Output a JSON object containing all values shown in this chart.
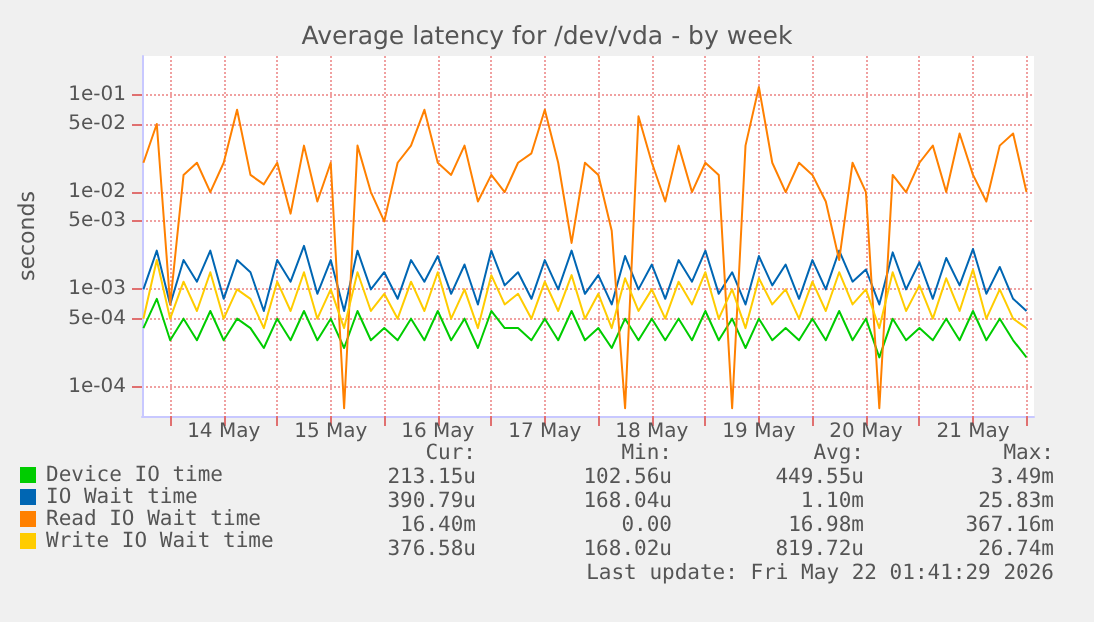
{
  "chart_data": {
    "type": "line",
    "title": "Average latency for /dev/vda - by week",
    "ylabel": "seconds",
    "log": "y",
    "grid": true,
    "legend": "bottom",
    "marker": "none",
    "line_style": "solid",
    "x": [
      "2026-05-13T18:00",
      "2026-05-13T21:00",
      "2026-05-14T00:00",
      "2026-05-14T03:00",
      "2026-05-14T06:00",
      "2026-05-14T09:00",
      "2026-05-14T12:00",
      "2026-05-14T15:00",
      "2026-05-14T18:00",
      "2026-05-14T21:00",
      "2026-05-15T00:00",
      "2026-05-15T03:00",
      "2026-05-15T06:00",
      "2026-05-15T09:00",
      "2026-05-15T12:00",
      "2026-05-15T15:00",
      "2026-05-15T18:00",
      "2026-05-15T21:00",
      "2026-05-16T00:00",
      "2026-05-16T03:00",
      "2026-05-16T06:00",
      "2026-05-16T09:00",
      "2026-05-16T12:00",
      "2026-05-16T15:00",
      "2026-05-16T18:00",
      "2026-05-16T21:00",
      "2026-05-17T00:00",
      "2026-05-17T03:00",
      "2026-05-17T06:00",
      "2026-05-17T09:00",
      "2026-05-17T12:00",
      "2026-05-17T15:00",
      "2026-05-17T18:00",
      "2026-05-17T21:00",
      "2026-05-18T00:00",
      "2026-05-18T03:00",
      "2026-05-18T06:00",
      "2026-05-18T09:00",
      "2026-05-18T12:00",
      "2026-05-18T15:00",
      "2026-05-18T18:00",
      "2026-05-18T21:00",
      "2026-05-19T00:00",
      "2026-05-19T03:00",
      "2026-05-19T06:00",
      "2026-05-19T09:00",
      "2026-05-19T12:00",
      "2026-05-19T15:00",
      "2026-05-19T18:00",
      "2026-05-19T21:00",
      "2026-05-20T00:00",
      "2026-05-20T03:00",
      "2026-05-20T06:00",
      "2026-05-20T09:00",
      "2026-05-20T12:00",
      "2026-05-20T15:00",
      "2026-05-20T18:00",
      "2026-05-20T21:00",
      "2026-05-21T00:00",
      "2026-05-21T03:00",
      "2026-05-21T06:00",
      "2026-05-21T09:00",
      "2026-05-21T12:00",
      "2026-05-21T15:00",
      "2026-05-21T18:00",
      "2026-05-21T21:00",
      "2026-05-22T00:00"
    ],
    "xlim": [
      "2026-05-13T17:41",
      "2026-05-22T01:41"
    ],
    "xticks": [
      {
        "value": "2026-05-14T00:00",
        "label": null
      },
      {
        "value": "2026-05-14T12:00",
        "label": "14 May"
      },
      {
        "value": "2026-05-15T00:00",
        "label": null
      },
      {
        "value": "2026-05-15T12:00",
        "label": "15 May"
      },
      {
        "value": "2026-05-16T00:00",
        "label": null
      },
      {
        "value": "2026-05-16T12:00",
        "label": "16 May"
      },
      {
        "value": "2026-05-17T00:00",
        "label": null
      },
      {
        "value": "2026-05-17T12:00",
        "label": "17 May"
      },
      {
        "value": "2026-05-18T00:00",
        "label": null
      },
      {
        "value": "2026-05-18T12:00",
        "label": "18 May"
      },
      {
        "value": "2026-05-19T00:00",
        "label": null
      },
      {
        "value": "2026-05-19T12:00",
        "label": "19 May"
      },
      {
        "value": "2026-05-20T00:00",
        "label": null
      },
      {
        "value": "2026-05-20T12:00",
        "label": "20 May"
      },
      {
        "value": "2026-05-21T00:00",
        "label": null
      },
      {
        "value": "2026-05-21T12:00",
        "label": "21 May"
      },
      {
        "value": "2026-05-22T00:00",
        "label": null
      }
    ],
    "ylim": [
      5e-05,
      0.25
    ],
    "yticks": [
      {
        "value": 0.0001,
        "label": "1e-04"
      },
      {
        "value": 0.0005,
        "label": "5e-04"
      },
      {
        "value": 0.001,
        "label": "1e-03"
      },
      {
        "value": 0.005,
        "label": "5e-03"
      },
      {
        "value": 0.01,
        "label": "1e-02"
      },
      {
        "value": 0.05,
        "label": "5e-02"
      },
      {
        "value": 0.1,
        "label": "1e-01"
      }
    ],
    "series": [
      {
        "name": "Device IO time",
        "color": "#00cc00",
        "values": [
          0.0004,
          0.0008,
          0.0003,
          0.0005,
          0.0003,
          0.0006,
          0.0003,
          0.0005,
          0.0004,
          0.00025,
          0.0005,
          0.0003,
          0.0006,
          0.0003,
          0.0005,
          0.00025,
          0.0006,
          0.0003,
          0.0004,
          0.0003,
          0.0005,
          0.0003,
          0.0006,
          0.0003,
          0.0005,
          0.00025,
          0.0006,
          0.0004,
          0.0004,
          0.0003,
          0.0005,
          0.0003,
          0.0006,
          0.0003,
          0.0004,
          0.00025,
          0.0005,
          0.0003,
          0.0005,
          0.0003,
          0.0005,
          0.0003,
          0.0006,
          0.0003,
          0.0005,
          0.00025,
          0.0005,
          0.0003,
          0.0004,
          0.0003,
          0.0005,
          0.0003,
          0.0006,
          0.0003,
          0.0005,
          0.0002,
          0.0005,
          0.0003,
          0.0004,
          0.0003,
          0.0005,
          0.0003,
          0.0006,
          0.0003,
          0.0005,
          0.0003,
          0.0002
        ]
      },
      {
        "name": "IO Wait time",
        "color": "#0066b3",
        "values": [
          0.001,
          0.0025,
          0.0007,
          0.002,
          0.0012,
          0.0025,
          0.0008,
          0.002,
          0.0015,
          0.0006,
          0.002,
          0.0012,
          0.0028,
          0.0009,
          0.002,
          0.0006,
          0.0025,
          0.001,
          0.0015,
          0.0008,
          0.002,
          0.0012,
          0.0022,
          0.0009,
          0.0018,
          0.0007,
          0.0025,
          0.0011,
          0.0015,
          0.0008,
          0.002,
          0.001,
          0.0025,
          0.0009,
          0.0014,
          0.0007,
          0.0022,
          0.001,
          0.0018,
          0.0008,
          0.002,
          0.0012,
          0.0025,
          0.0009,
          0.0015,
          0.0007,
          0.0022,
          0.0011,
          0.0018,
          0.0008,
          0.002,
          0.001,
          0.0025,
          0.0012,
          0.0016,
          0.0007,
          0.0024,
          0.001,
          0.0019,
          0.0008,
          0.0021,
          0.0011,
          0.0026,
          0.0009,
          0.0017,
          0.0008,
          0.0006
        ]
      },
      {
        "name": "Read IO Wait time",
        "color": "#ff8000",
        "values": [
          0.02,
          0.05,
          0.0007,
          0.015,
          0.02,
          0.01,
          0.02,
          0.07,
          0.015,
          0.012,
          0.02,
          0.006,
          0.03,
          0.008,
          0.02,
          6e-05,
          0.03,
          0.01,
          0.005,
          0.02,
          0.03,
          0.07,
          0.02,
          0.015,
          0.03,
          0.008,
          0.015,
          0.01,
          0.02,
          0.025,
          0.07,
          0.02,
          0.003,
          0.02,
          0.015,
          0.004,
          6e-05,
          0.06,
          0.02,
          0.008,
          0.03,
          0.01,
          0.02,
          0.015,
          6e-05,
          0.03,
          0.12,
          0.02,
          0.01,
          0.02,
          0.015,
          0.008,
          0.002,
          0.02,
          0.01,
          6e-05,
          0.015,
          0.01,
          0.02,
          0.03,
          0.01,
          0.04,
          0.015,
          0.008,
          0.03,
          0.04,
          0.01
        ]
      },
      {
        "name": "Write IO Wait time",
        "color": "#ffcc00",
        "values": [
          0.0005,
          0.002,
          0.0005,
          0.0012,
          0.0006,
          0.0015,
          0.0005,
          0.001,
          0.0008,
          0.0004,
          0.0012,
          0.0006,
          0.0015,
          0.0005,
          0.001,
          0.0004,
          0.0015,
          0.0006,
          0.0009,
          0.0005,
          0.0012,
          0.0006,
          0.0015,
          0.0005,
          0.001,
          0.0004,
          0.0014,
          0.0007,
          0.0009,
          0.0005,
          0.0012,
          0.0006,
          0.0014,
          0.0005,
          0.0009,
          0.0004,
          0.0013,
          0.0006,
          0.001,
          0.0005,
          0.0012,
          0.0007,
          0.0015,
          0.0005,
          0.001,
          0.0004,
          0.0013,
          0.0007,
          0.001,
          0.0005,
          0.0012,
          0.0006,
          0.0015,
          0.0007,
          0.001,
          0.0004,
          0.0015,
          0.0006,
          0.0011,
          0.0005,
          0.0013,
          0.0006,
          0.0016,
          0.0005,
          0.001,
          0.0005,
          0.0004
        ]
      }
    ],
    "annotations": [
      "Cur:",
      "Min:",
      "Avg:",
      "Max:",
      "213.15u",
      "102.56u",
      "449.55u",
      "3.49m",
      "390.79u",
      "168.04u",
      "1.10m",
      "25.83m",
      "16.40m",
      "0.00",
      "16.98m",
      "367.16m",
      "376.58u",
      "168.02u",
      "819.72u",
      "26.74m",
      "Last update: Fri May 22 01:41:29 2026"
    ]
  }
}
